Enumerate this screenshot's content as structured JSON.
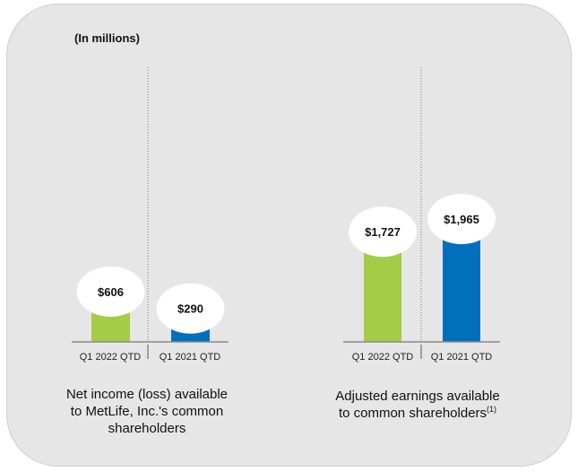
{
  "units_label": "(In millions)",
  "colors": {
    "current": "#a4cc47",
    "prior": "#0070bd",
    "panel": "#e6e6e6",
    "axis": "#8c8c8c"
  },
  "chart_data": [
    {
      "type": "bar",
      "title": "Net income (loss) available to MetLife, Inc.'s common shareholders",
      "title_lines": [
        "Net income (loss) available",
        "to MetLife, Inc.'s common",
        "shareholders"
      ],
      "categories": [
        "Q1 2022 QTD",
        "Q1 2021 QTD"
      ],
      "values": [
        606,
        290
      ],
      "data_labels": [
        "$606",
        "$290"
      ],
      "units": "millions of dollars",
      "ylim": [
        0,
        2500
      ]
    },
    {
      "type": "bar",
      "title": "Adjusted earnings available to common shareholders(1)",
      "title_lines": [
        "Adjusted earnings available",
        "to common shareholders"
      ],
      "footnote_mark": "(1)",
      "categories": [
        "Q1 2022 QTD",
        "Q1 2021 QTD"
      ],
      "values": [
        1727,
        1965
      ],
      "data_labels": [
        "$1,727",
        "$1,965"
      ],
      "units": "millions of dollars",
      "ylim": [
        0,
        2500
      ]
    }
  ]
}
